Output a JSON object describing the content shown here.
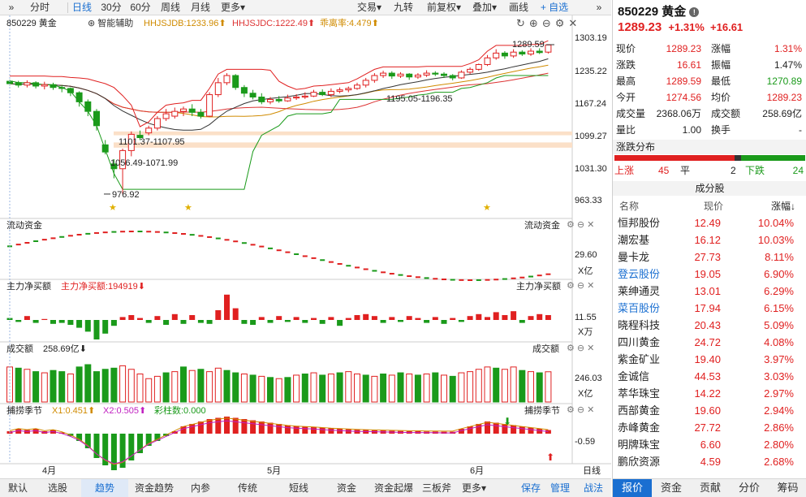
{
  "toolbar": {
    "expand": "»",
    "tabs": [
      "分时",
      "日线",
      "30分",
      "60分",
      "周线",
      "月线",
      "更多▾"
    ],
    "active_tab": "日线",
    "right": [
      "交易▾",
      "九转",
      "前复权▾",
      "叠加▾",
      "画线",
      "+ 自选",
      "»"
    ]
  },
  "chart": {
    "title": "850229 黄金",
    "smart": "智能辅助",
    "hhjsjdb": "HHJSJDB:1233.96⬆",
    "hhjsjdc": "HHJSJDC:1222.49⬆",
    "deviation": "乖离率:4.479⬆",
    "price_axis": [
      "1303.19",
      "1235.22",
      "1167.24",
      "1099.27",
      "1031.30",
      "963.33"
    ],
    "annotations": {
      "high": "1289.59",
      "mid_range": "1195.05-1196.35",
      "left_range": "1101.37-1107.95",
      "low_range": "1056.49-1071.99",
      "low": "976.92"
    },
    "flow_title": "流动资金",
    "flow_value": "29.60",
    "flow_unit": "X亿",
    "main_title": "主力净买额",
    "main_value_label": "主力净买额:194919⬇",
    "main_axis": "11.55",
    "main_unit": "X万",
    "vol_title": "成交额",
    "vol_value": "258.69亿⬇",
    "vol_axis": "246.03",
    "vol_unit": "X亿",
    "season_title": "捕捞季节",
    "x1": "X1:0.451⬆",
    "x2": "X2:0.505⬆",
    "bar_label": "彩柱数:0.000",
    "season_axis": "-0.59",
    "months": [
      "4月",
      "5月",
      "6月"
    ],
    "period": "日线"
  },
  "bottom_tabs": [
    "默认",
    "选股",
    "趋势",
    "资金趋势",
    "内参",
    "传统",
    "短线",
    "资金",
    "资金起爆",
    "三板斧",
    "更多▾",
    "保存",
    "管理",
    "战法"
  ],
  "bottom_active": "趋势",
  "quote": {
    "title": "850229 黄金",
    "price": "1289.23",
    "change_pct": "+1.31%",
    "change": "+16.61",
    "rows": [
      {
        "l1": "现价",
        "v1": "1289.23",
        "l2": "涨幅",
        "v2": "1.31%"
      },
      {
        "l1": "涨跌",
        "v1": "16.61",
        "l2": "振幅",
        "v2": "1.47%"
      },
      {
        "l1": "最高",
        "v1": "1289.59",
        "l2": "最低",
        "v2": "1270.89"
      },
      {
        "l1": "今开",
        "v1": "1274.56",
        "l2": "均价",
        "v2": "1289.23"
      },
      {
        "l1": "成交量",
        "v1": "2368.06万",
        "l2": "成交额",
        "v2": "258.69亿"
      },
      {
        "l1": "量比",
        "v1": "1.00",
        "l2": "换手",
        "v2": "-"
      }
    ],
    "dist_title": "涨跌分布",
    "dist": {
      "up_label": "上涨",
      "up": "45",
      "flat_label": "平",
      "flat": "2",
      "down_label": "下跌",
      "down": "24"
    },
    "const_title": "成分股",
    "headers": [
      "名称",
      "现价",
      "涨幅↓"
    ],
    "stocks": [
      {
        "name": "恒邦股份",
        "price": "12.49",
        "pct": "10.04%"
      },
      {
        "name": "潮宏基",
        "price": "16.12",
        "pct": "10.03%"
      },
      {
        "name": "曼卡龙",
        "price": "27.73",
        "pct": "8.11%"
      },
      {
        "name": "登云股份",
        "price": "19.05",
        "pct": "6.90%"
      },
      {
        "name": "莱绅通灵",
        "price": "13.01",
        "pct": "6.29%"
      },
      {
        "name": "菜百股份",
        "price": "17.94",
        "pct": "6.15%"
      },
      {
        "name": "晓程科技",
        "price": "20.43",
        "pct": "5.09%"
      },
      {
        "name": "四川黄金",
        "price": "24.72",
        "pct": "4.08%"
      },
      {
        "name": "紫金矿业",
        "price": "19.40",
        "pct": "3.97%"
      },
      {
        "name": "金诚信",
        "price": "44.53",
        "pct": "3.03%"
      },
      {
        "name": "萃华珠宝",
        "price": "14.22",
        "pct": "2.97%"
      },
      {
        "name": "西部黄金",
        "price": "19.60",
        "pct": "2.94%"
      },
      {
        "name": "赤峰黄金",
        "price": "27.72",
        "pct": "2.86%"
      },
      {
        "name": "明牌珠宝",
        "price": "6.60",
        "pct": "2.80%"
      },
      {
        "name": "鹏欣资源",
        "price": "4.59",
        "pct": "2.68%"
      }
    ],
    "right_tabs": [
      "报价",
      "资金",
      "贡献",
      "分价",
      "筹码"
    ],
    "right_active": "报价"
  },
  "candles": [
    [
      1213,
      1208,
      1216,
      1204
    ],
    [
      1210,
      1205,
      1214,
      1200
    ],
    [
      1205,
      1210,
      1215,
      1200
    ],
    [
      1210,
      1203,
      1213,
      1198
    ],
    [
      1203,
      1206,
      1212,
      1196
    ],
    [
      1206,
      1200,
      1210,
      1195
    ],
    [
      1200,
      1198,
      1205,
      1190
    ],
    [
      1198,
      1189,
      1200,
      1182
    ],
    [
      1189,
      1170,
      1192,
      1160
    ],
    [
      1170,
      1150,
      1175,
      1140
    ],
    [
      1150,
      1120,
      1155,
      1110
    ],
    [
      1080,
      1065,
      1090,
      1060
    ],
    [
      1040,
      1030,
      1050,
      1010
    ],
    [
      1030,
      1068,
      1072,
      977
    ],
    [
      1068,
      1102,
      1108,
      1056
    ],
    [
      1100,
      1095,
      1110,
      1090
    ],
    [
      1105,
      1115,
      1120,
      1100
    ],
    [
      1115,
      1135,
      1140,
      1110
    ],
    [
      1135,
      1145,
      1155,
      1130
    ],
    [
      1140,
      1150,
      1158,
      1135
    ],
    [
      1150,
      1155,
      1160,
      1140
    ],
    [
      1155,
      1148,
      1165,
      1140
    ],
    [
      1148,
      1140,
      1155,
      1135
    ],
    [
      1140,
      1185,
      1190,
      1138
    ],
    [
      1185,
      1210,
      1220,
      1180
    ],
    [
      1210,
      1225,
      1230,
      1205
    ],
    [
      1225,
      1200,
      1228,
      1195
    ],
    [
      1200,
      1188,
      1205,
      1180
    ],
    [
      1188,
      1180,
      1195,
      1175
    ],
    [
      1180,
      1170,
      1188,
      1165
    ],
    [
      1170,
      1175,
      1180,
      1165
    ],
    [
      1175,
      1172,
      1182,
      1168
    ],
    [
      1172,
      1178,
      1185,
      1170
    ],
    [
      1178,
      1180,
      1186,
      1174
    ],
    [
      1180,
      1182,
      1190,
      1176
    ],
    [
      1182,
      1190,
      1195,
      1180
    ],
    [
      1190,
      1185,
      1196,
      1182
    ],
    [
      1185,
      1192,
      1198,
      1180
    ],
    [
      1192,
      1195,
      1200,
      1188
    ],
    [
      1195,
      1198,
      1202,
      1190
    ],
    [
      1198,
      1205,
      1210,
      1195
    ],
    [
      1205,
      1215,
      1220,
      1200
    ],
    [
      1215,
      1225,
      1230,
      1210
    ],
    [
      1225,
      1230,
      1235,
      1220
    ],
    [
      1230,
      1224,
      1234,
      1218
    ],
    [
      1224,
      1228,
      1232,
      1220
    ],
    [
      1228,
      1222,
      1230,
      1216
    ],
    [
      1222,
      1226,
      1230,
      1218
    ],
    [
      1226,
      1230,
      1236,
      1222
    ],
    [
      1230,
      1228,
      1234,
      1224
    ],
    [
      1228,
      1225,
      1232,
      1220
    ],
    [
      1225,
      1220,
      1228,
      1215
    ],
    [
      1220,
      1232,
      1236,
      1218
    ],
    [
      1232,
      1238,
      1242,
      1228
    ],
    [
      1238,
      1248,
      1250,
      1235
    ],
    [
      1248,
      1262,
      1268,
      1245
    ],
    [
      1262,
      1272,
      1280,
      1258
    ],
    [
      1272,
      1266,
      1276,
      1260
    ],
    [
      1266,
      1274,
      1280,
      1262
    ],
    [
      1274,
      1270,
      1278,
      1266
    ],
    [
      1270,
      1276,
      1282,
      1266
    ],
    [
      1276,
      1273,
      1282,
      1270
    ],
    [
      1274,
      1289,
      1290,
      1271
    ]
  ],
  "volumes": [
    [
      300,
      1
    ],
    [
      290,
      0
    ],
    [
      280,
      1
    ],
    [
      260,
      0
    ],
    [
      250,
      1
    ],
    [
      270,
      0
    ],
    [
      260,
      0
    ],
    [
      240,
      1
    ],
    [
      300,
      0
    ],
    [
      320,
      0
    ],
    [
      260,
      0
    ],
    [
      280,
      0
    ],
    [
      290,
      0
    ],
    [
      310,
      1
    ],
    [
      280,
      1
    ],
    [
      240,
      1
    ],
    [
      200,
      1
    ],
    [
      220,
      1
    ],
    [
      250,
      0
    ],
    [
      260,
      1
    ],
    [
      300,
      0
    ],
    [
      270,
      1
    ],
    [
      280,
      0
    ],
    [
      260,
      1
    ],
    [
      290,
      1
    ],
    [
      270,
      0
    ],
    [
      250,
      0
    ],
    [
      240,
      1
    ],
    [
      230,
      0
    ],
    [
      220,
      1
    ],
    [
      210,
      0
    ],
    [
      200,
      1
    ],
    [
      210,
      0
    ],
    [
      230,
      1
    ],
    [
      240,
      0
    ],
    [
      250,
      1
    ],
    [
      230,
      0
    ],
    [
      240,
      1
    ],
    [
      250,
      0
    ],
    [
      260,
      1
    ],
    [
      240,
      1
    ],
    [
      230,
      0
    ],
    [
      220,
      1
    ],
    [
      240,
      0
    ],
    [
      230,
      1
    ],
    [
      250,
      0
    ],
    [
      240,
      1
    ],
    [
      230,
      0
    ],
    [
      240,
      1
    ],
    [
      250,
      0
    ],
    [
      230,
      1
    ],
    [
      220,
      0
    ],
    [
      250,
      1
    ],
    [
      260,
      1
    ],
    [
      280,
      1
    ],
    [
      300,
      1
    ],
    [
      290,
      0
    ],
    [
      280,
      1
    ],
    [
      300,
      1
    ],
    [
      270,
      0
    ],
    [
      260,
      1
    ],
    [
      250,
      0
    ],
    [
      259,
      1
    ]
  ],
  "main_flow": [
    [
      2,
      0
    ],
    [
      -2,
      0
    ],
    [
      4,
      1
    ],
    [
      -3,
      0
    ],
    [
      1,
      1
    ],
    [
      -4,
      0
    ],
    [
      -3,
      0
    ],
    [
      -5,
      0
    ],
    [
      -8,
      0
    ],
    [
      -12,
      0
    ],
    [
      -20,
      0
    ],
    [
      -14,
      0
    ],
    [
      -6,
      0
    ],
    [
      3,
      1
    ],
    [
      5,
      1
    ],
    [
      2,
      1
    ],
    [
      -3,
      0
    ],
    [
      4,
      1
    ],
    [
      -5,
      0
    ],
    [
      6,
      1
    ],
    [
      -4,
      0
    ],
    [
      5,
      1
    ],
    [
      -3,
      0
    ],
    [
      -4,
      0
    ],
    [
      10,
      1
    ],
    [
      26,
      1
    ],
    [
      12,
      1
    ],
    [
      -4,
      0
    ],
    [
      -5,
      0
    ],
    [
      3,
      1
    ],
    [
      -3,
      0
    ],
    [
      4,
      1
    ],
    [
      -2,
      0
    ],
    [
      3,
      1
    ],
    [
      -3,
      0
    ],
    [
      2,
      1
    ],
    [
      -4,
      0
    ],
    [
      3,
      1
    ],
    [
      -6,
      0
    ],
    [
      2,
      1
    ],
    [
      5,
      1
    ],
    [
      6,
      1
    ],
    [
      4,
      1
    ],
    [
      -3,
      0
    ],
    [
      3,
      1
    ],
    [
      -2,
      0
    ],
    [
      4,
      1
    ],
    [
      2,
      1
    ],
    [
      -3,
      0
    ],
    [
      3,
      1
    ],
    [
      -4,
      0
    ],
    [
      2,
      1
    ],
    [
      -2,
      0
    ],
    [
      4,
      1
    ],
    [
      6,
      1
    ],
    [
      3,
      1
    ],
    [
      8,
      1
    ],
    [
      5,
      1
    ],
    [
      9,
      1
    ],
    [
      -3,
      0
    ],
    [
      4,
      1
    ],
    [
      6,
      1
    ],
    [
      5,
      1
    ]
  ],
  "season_bars": [
    [
      1
    ],
    [
      2
    ],
    [
      1.5
    ],
    [
      2
    ],
    [
      1
    ],
    [
      1.5
    ],
    [
      0.5
    ],
    [
      -1
    ],
    [
      -3
    ],
    [
      -6
    ],
    [
      -10
    ],
    [
      -13
    ],
    [
      -15
    ],
    [
      -14
    ],
    [
      -11
    ],
    [
      -8
    ],
    [
      -5
    ],
    [
      -3
    ],
    [
      -1
    ],
    [
      1
    ],
    [
      3
    ],
    [
      4
    ],
    [
      5
    ],
    [
      6
    ],
    [
      6.5
    ],
    [
      7
    ],
    [
      6.5
    ],
    [
      6
    ],
    [
      5.5
    ],
    [
      5
    ],
    [
      4.5
    ],
    [
      4
    ],
    [
      3.5
    ],
    [
      3.2
    ],
    [
      3
    ],
    [
      2.8
    ],
    [
      2.5
    ],
    [
      2.2
    ],
    [
      2
    ],
    [
      1.8
    ],
    [
      1.6
    ],
    [
      1.5
    ],
    [
      1.4
    ],
    [
      1.3
    ],
    [
      1.2
    ],
    [
      1.1
    ],
    [
      1
    ],
    [
      1
    ],
    [
      0.9
    ],
    [
      0.9
    ],
    [
      0.8
    ],
    [
      0.8
    ],
    [
      2
    ],
    [
      3
    ],
    [
      4
    ],
    [
      5
    ],
    [
      4.5
    ],
    [
      4
    ],
    [
      3.5
    ],
    [
      3
    ],
    [
      2.5
    ],
    [
      2
    ],
    [
      1.5
    ]
  ]
}
